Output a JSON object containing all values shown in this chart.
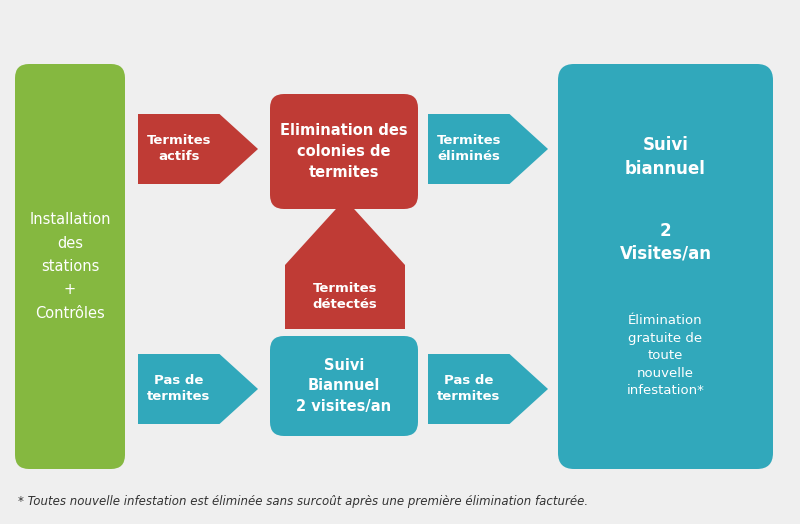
{
  "bg_color": "#efefef",
  "green_color": "#85b840",
  "red_color": "#bf3b35",
  "teal_color": "#31a8bb",
  "white_text": "#ffffff",
  "dark_text": "#333333",
  "footnote_text": "* Toutes nouvelle infestation est éliminée sans surcoût après une première élimination facturée.",
  "box1_text": "Installation\ndes\nstations\n+\nContrôles",
  "box2_text": "Elimination des\ncolonies de\ntermites",
  "box3_text": "Suivi\nBiannuel\n2 visites/an",
  "arrow1_text": "Termites\nactifs",
  "arrow2_text": "Termites\néliminés",
  "arrow3_text": "Termites\ndétectés",
  "arrow4_text": "Pas de\ntermites",
  "arrow5_text": "Pas de\ntermites",
  "suivi_line1": "Suivi\nbiannuel",
  "suivi_line2": "2\nVisites/an",
  "suivi_line3": "Élimination\ngratuite de\ntoute\nnouvelle\ninfestation*"
}
